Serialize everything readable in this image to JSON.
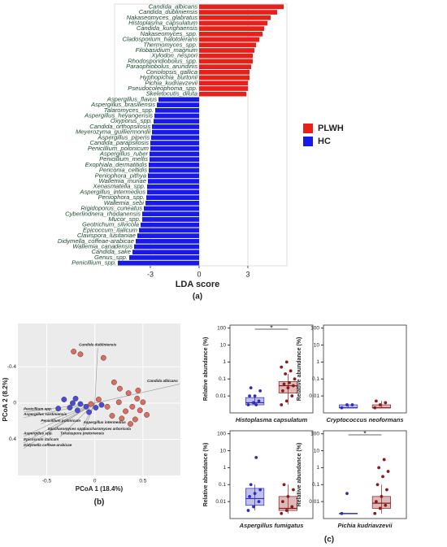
{
  "group_caption": "(c)",
  "chart_data": [
    {
      "type": "hbar",
      "xlabel": "LDA score",
      "caption": "(a)",
      "xlim": [
        -5.2,
        5.4
      ],
      "xticks": [
        -3,
        0,
        3
      ],
      "grid": true,
      "legend": "right",
      "categories": [
        "Candida_albicans",
        "Candida_dubliniensis",
        "Nakaseomyces_glabratus",
        "Histoplasma_capsulatum",
        "Candida_kurighaensis",
        "Nakaseomyces_spp.",
        "Cladosporium_halotolerans",
        "Thermomyces_spp.",
        "Filobasidium_magnum",
        "Xylodon_nespori",
        "Rhodosporidiobolus_spp.",
        "Paraophiobolus_arundinis",
        "Coriolopsis_gallica",
        "Hyphopichia_burtonii",
        "Pichia_kudriavzevii",
        "Pseudocoleophoma_spp.",
        "Skeletocutis_diluta",
        "Aspergillus_flavus",
        "Aspergillus_brasiliensis",
        "Talaromyces_spp.",
        "Aspergillus_heyangensis",
        "Oxyporus_spp.",
        "Candida_orthopsilosis",
        "Meyerozyma_guilliermondii",
        "Aspergillus_piperis",
        "Candida_parapsilosis",
        "Penicillium_polonicum",
        "Aspergillus_ruber",
        "Penicillium_mellis",
        "Exophiala_dermatitidis",
        "Periconia_celtidis",
        "Peniophora_pithya",
        "Wallemia_muriae",
        "Xenasmatella_spp.",
        "Aspergillus_intermedius",
        "Peniophora_spp.",
        "Wallemia_sebi",
        "Rigidoporus_cuneatus",
        "Cyberlindnera_rhodanensis",
        "Mucor_spp.",
        "Geotrichum_silvicola",
        "Epicoccum_italicum",
        "Clavispora_lusitaniae",
        "Didymella_coffeae-arabicae",
        "Wallemia_canadensis",
        "Candida_sake",
        "Genus_spp.",
        "Penicillium_spp."
      ],
      "series": [
        {
          "name": "PLWH",
          "color": "#e8201a",
          "values": [
            5.2,
            4.8,
            4.4,
            4.2,
            4.0,
            3.9,
            3.7,
            3.5,
            3.4,
            3.3,
            3.3,
            3.2,
            3.1,
            3.1,
            3.0,
            3.0,
            2.9,
            null,
            null,
            null,
            null,
            null,
            null,
            null,
            null,
            null,
            null,
            null,
            null,
            null,
            null,
            null,
            null,
            null,
            null,
            null,
            null,
            null,
            null,
            null,
            null,
            null,
            null,
            null,
            null,
            null,
            null,
            null
          ]
        },
        {
          "name": "HC",
          "color": "#1a1ae8",
          "values": [
            null,
            null,
            null,
            null,
            null,
            null,
            null,
            null,
            null,
            null,
            null,
            null,
            null,
            null,
            null,
            null,
            null,
            -2.5,
            -2.6,
            -2.7,
            -2.75,
            -2.8,
            -2.9,
            -2.9,
            -2.95,
            -3.0,
            -3.0,
            -3.05,
            -3.05,
            -3.1,
            -3.1,
            -3.15,
            -3.15,
            -3.2,
            -3.2,
            -3.25,
            -3.3,
            -3.4,
            -3.5,
            -3.5,
            -3.6,
            -3.7,
            -3.8,
            -3.9,
            -4.0,
            -4.1,
            -4.3,
            -5.0
          ]
        }
      ]
    },
    {
      "type": "scatter",
      "xlabel": "PCoA 1 (18.4%)",
      "ylabel": "PCoA 2 (8.2%)",
      "caption": "(b)",
      "xlim": [
        -0.8,
        0.89
      ],
      "ylim": [
        -0.88,
        0.8
      ],
      "y_inverted": true,
      "xticks": [
        -0.5,
        0.0,
        0.5
      ],
      "yticks": [
        -0.4,
        0.0,
        0.4
      ],
      "grid": true,
      "series": [
        {
          "color": "#e06a5c",
          "x": [
            -0.22,
            -0.15,
            0.2,
            0.26,
            0.35,
            0.44,
            0.39,
            0.47,
            0.5,
            0.54,
            0.25,
            0.32,
            0.42,
            0.37,
            0.28,
            0.13,
            0.04,
            -0.04,
            0.18,
            0.45,
            0.09
          ],
          "values": [
            -0.57,
            -0.54,
            -0.23,
            -0.16,
            -0.11,
            -0.05,
            0.04,
            0.08,
            -0.01,
            0.13,
            -0.01,
            0.09,
            0.18,
            0.23,
            0.17,
            0.04,
            -0.04,
            0.01,
            0.14,
            -0.14,
            -0.5
          ]
        },
        {
          "color": "#4a4ad6",
          "x": [
            -0.32,
            -0.23,
            -0.15,
            -0.26,
            -0.18,
            -0.09,
            0.01,
            -0.06,
            -0.38,
            -0.2,
            0.07
          ],
          "values": [
            -0.04,
            0,
            0.01,
            0.05,
            0.08,
            0.04,
            0.05,
            0.1,
            0.06,
            -0.05,
            0.02
          ]
        }
      ],
      "vectors": [
        {
          "label": "Candida dubliniensis",
          "x": 0.03,
          "y": -0.61
        },
        {
          "label": "Candida albicans",
          "x": 0.88,
          "y": -0.21
        },
        {
          "label": "Penicillium spp.",
          "x": -0.74,
          "y": 0.1
        },
        {
          "label": "Aspergillus sardiniensis",
          "x": -0.74,
          "y": 0.16
        },
        {
          "label": "Penicillium polonicum",
          "x": -0.56,
          "y": 0.23
        },
        {
          "label": "Aspergillus intermedius",
          "x": -0.12,
          "y": 0.25
        },
        {
          "label": "Saccharomyces spp.",
          "x": -0.49,
          "y": 0.32
        },
        {
          "label": "Saccharomyces arboricola",
          "x": -0.12,
          "y": 0.32
        },
        {
          "label": "Aspergillus spp.",
          "x": -0.74,
          "y": 0.37
        },
        {
          "label": "Torulaspora pretoriensis",
          "x": -0.36,
          "y": 0.37
        },
        {
          "label": "Epicoccum italicum",
          "x": -0.74,
          "y": 0.44
        },
        {
          "label": "Didymella coffeae-arabicae",
          "x": -0.74,
          "y": 0.5
        }
      ]
    },
    {
      "type": "box",
      "xlabel": "Histoplasma capsulatum",
      "ylabel": "Relative abundance (%)",
      "log_y": true,
      "ylim": [
        0.001,
        150
      ],
      "yticks": [
        100,
        10,
        1,
        0.1,
        0.01
      ],
      "significance": "*",
      "series": [
        {
          "color": "#2d2db8",
          "q1": 0.003,
          "median": 0.004,
          "q3": 0.008,
          "whislo": 0.003,
          "whishi": 0.01,
          "points": [
            0.003,
            0.004,
            0.005,
            0.01,
            0.01,
            0.02,
            0.03,
            0.003
          ]
        },
        {
          "color": "#8b1a1a",
          "q1": 0.015,
          "median": 0.04,
          "q3": 0.07,
          "whislo": 0.003,
          "whishi": 0.2,
          "points": [
            0.003,
            0.005,
            0.01,
            0.02,
            0.03,
            0.04,
            0.05,
            0.06,
            0.1,
            0.2,
            0.3,
            0.5,
            1
          ]
        }
      ]
    },
    {
      "type": "box",
      "xlabel": "Cryptococcus neoformans",
      "ylabel": "Relative abundance (%)",
      "log_y": true,
      "ylim": [
        0.001,
        150
      ],
      "yticks": [
        100,
        10,
        1,
        0.1,
        0.01
      ],
      "series": [
        {
          "color": "#2d2db8",
          "q1": 0.002,
          "median": 0.002,
          "q3": 0.003,
          "whislo": 0.002,
          "whishi": 0.003,
          "points": [
            0.002,
            0.003,
            0.003
          ]
        },
        {
          "color": "#8b1a1a",
          "q1": 0.002,
          "median": 0.002,
          "q3": 0.003,
          "whislo": 0.002,
          "whishi": 0.005,
          "points": [
            0.002,
            0.003,
            0.004,
            0.005
          ]
        }
      ]
    },
    {
      "type": "box",
      "xlabel": "Aspergillus fumigatus",
      "ylabel": "Relative abundance (%)",
      "log_y": true,
      "ylim": [
        0.001,
        150
      ],
      "yticks": [
        100,
        10,
        1,
        0.1,
        0.01
      ],
      "series": [
        {
          "color": "#2d2db8",
          "q1": 0.006,
          "median": 0.015,
          "q3": 0.06,
          "whislo": 0.003,
          "whishi": 0.1,
          "points": [
            0.003,
            0.005,
            0.01,
            0.02,
            0.03,
            0.05,
            0.1,
            4
          ]
        },
        {
          "color": "#8b1a1a",
          "q1": 0.003,
          "median": 0.004,
          "q3": 0.02,
          "whislo": 0.002,
          "whishi": 0.1,
          "points": [
            0.002,
            0.003,
            0.005,
            0.01,
            0.02,
            0.05,
            0.1
          ]
        }
      ]
    },
    {
      "type": "box",
      "xlabel": "Pichia kudriavzevii",
      "ylabel": "Relative abundance (%)",
      "log_y": true,
      "ylim": [
        0.001,
        150
      ],
      "yticks": [
        100,
        10,
        1,
        0.1,
        0.01
      ],
      "significance": "*",
      "series": [
        {
          "color": "#2d2db8",
          "q1": 0.002,
          "median": 0.002,
          "q3": 0.002,
          "whislo": 0.002,
          "whishi": 0.002,
          "points": [
            0.002,
            0.03
          ]
        },
        {
          "color": "#8b1a1a",
          "q1": 0.004,
          "median": 0.008,
          "q3": 0.02,
          "whislo": 0.002,
          "whishi": 0.1,
          "points": [
            0.002,
            0.004,
            0.006,
            0.01,
            0.02,
            0.05,
            0.1,
            0.3,
            0.6,
            1,
            3
          ]
        }
      ]
    }
  ]
}
